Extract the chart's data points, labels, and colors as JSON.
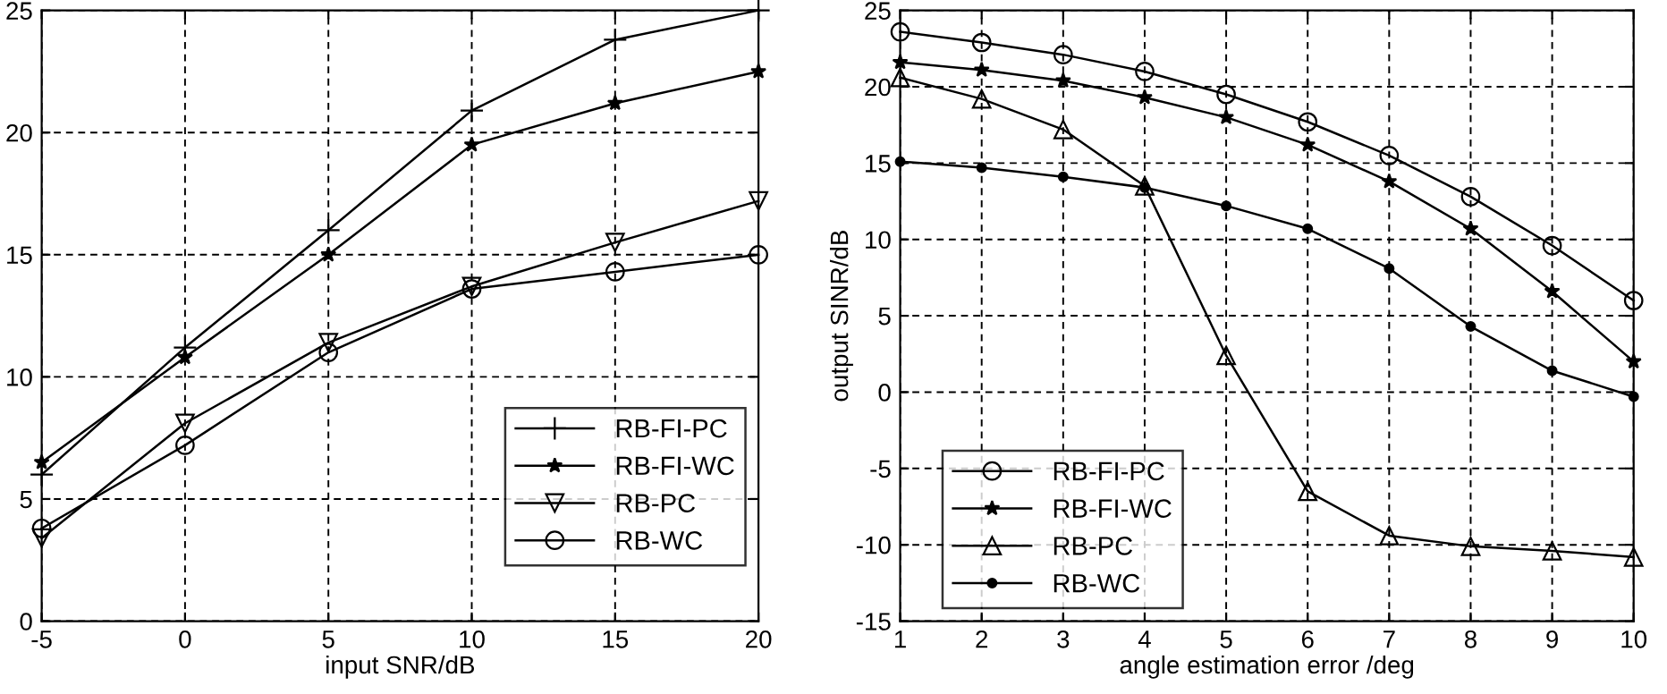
{
  "chart_data": [
    {
      "type": "line",
      "xlabel": "input SNR/dB",
      "x": [
        -5,
        0,
        5,
        10,
        15,
        20
      ],
      "xlim": [
        -5,
        20
      ],
      "xticks": [
        -5,
        0,
        5,
        10,
        15,
        20
      ],
      "ylim": [
        0,
        25
      ],
      "yticks": [
        0,
        5,
        10,
        15,
        20,
        25
      ],
      "grid": true,
      "legend": "lower right",
      "series": [
        {
          "name": "RB-FI-PC",
          "color": "#000000",
          "marker": "cross",
          "values": [
            6.0,
            11.2,
            16.0,
            20.9,
            23.8,
            25.0
          ]
        },
        {
          "name": "RB-FI-WC",
          "color": "#000000",
          "marker": "star",
          "values": [
            6.5,
            10.8,
            15.0,
            19.5,
            21.2,
            22.5
          ]
        },
        {
          "name": "RB-PC",
          "color": "#000000",
          "marker": "triangle_down",
          "values": [
            3.4,
            8.1,
            11.4,
            13.7,
            15.5,
            17.2
          ]
        },
        {
          "name": "RB-WC",
          "color": "#000000",
          "marker": "circle",
          "values": [
            3.8,
            7.2,
            11.0,
            13.6,
            14.3,
            15.0
          ]
        }
      ]
    },
    {
      "type": "line",
      "xlabel": "angle estimation error /deg",
      "ylabel": "output SINR/dB",
      "x": [
        1,
        2,
        3,
        4,
        5,
        6,
        7,
        8,
        9,
        10
      ],
      "xlim": [
        1,
        10
      ],
      "xticks": [
        1,
        2,
        3,
        4,
        5,
        6,
        7,
        8,
        9,
        10
      ],
      "ylim": [
        -15,
        25
      ],
      "yticks": [
        -15,
        -10,
        -5,
        0,
        5,
        10,
        15,
        20,
        25
      ],
      "grid": true,
      "legend": "lower left",
      "series": [
        {
          "name": "RB-FI-PC",
          "color": "#000000",
          "marker": "circle",
          "values": [
            23.6,
            22.9,
            22.1,
            21.0,
            19.5,
            17.7,
            15.5,
            12.8,
            9.6,
            6.0
          ]
        },
        {
          "name": "RB-FI-WC",
          "color": "#000000",
          "marker": "star",
          "values": [
            21.6,
            21.1,
            20.4,
            19.3,
            18.0,
            16.2,
            13.8,
            10.7,
            6.6,
            2.0
          ]
        },
        {
          "name": "RB-PC",
          "color": "#000000",
          "marker": "triangle",
          "values": [
            20.6,
            19.2,
            17.2,
            13.5,
            2.4,
            -6.5,
            -9.4,
            -10.1,
            -10.4,
            -10.8
          ]
        },
        {
          "name": "RB-WC",
          "color": "#000000",
          "marker": "point",
          "values": [
            15.1,
            14.7,
            14.1,
            13.4,
            12.2,
            10.7,
            8.1,
            4.3,
            1.4,
            -0.3
          ]
        }
      ]
    }
  ]
}
